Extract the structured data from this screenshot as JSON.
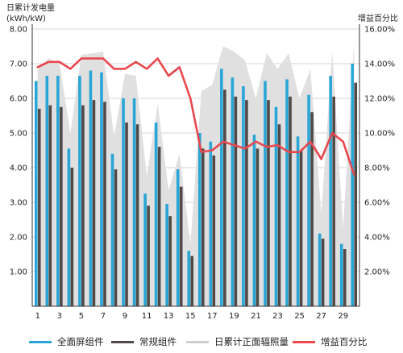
{
  "chart_data": {
    "type": "bar",
    "left_axis_title": [
      "日累计发电量",
      "(kWh/kW)"
    ],
    "right_axis_title": "增益百分比",
    "left_ylim": [
      0,
      8
    ],
    "left_ticks": [
      "1.00",
      "2.00",
      "3.00",
      "4.00",
      "5.00",
      "6.00",
      "7.00",
      "8.00"
    ],
    "right_ylim": [
      0,
      16
    ],
    "right_ticks": [
      "2.00%",
      "4.00%",
      "6.00%",
      "8.00%",
      "10.00%",
      "12.00%",
      "14.00%",
      "16.00%"
    ],
    "x_tick_labels": [
      "1",
      "3",
      "5",
      "7",
      "9",
      "11",
      "13",
      "15",
      "17",
      "19",
      "21",
      "23",
      "25",
      "27",
      "29"
    ],
    "days": [
      1,
      2,
      3,
      4,
      5,
      6,
      7,
      8,
      9,
      10,
      11,
      12,
      13,
      14,
      15,
      16,
      17,
      18,
      19,
      20,
      21,
      22,
      23,
      24,
      25,
      26,
      27,
      28,
      29,
      30
    ],
    "grid": true,
    "legend_position": "bottom",
    "series": [
      {
        "name": "全面屏组件",
        "color": "#2aa6d6",
        "axis": "left",
        "values": [
          6.5,
          6.65,
          6.65,
          4.55,
          6.65,
          6.8,
          6.75,
          4.4,
          6.0,
          6.0,
          3.25,
          5.3,
          2.95,
          3.95,
          1.6,
          5.0,
          4.75,
          6.85,
          6.6,
          6.35,
          4.95,
          6.5,
          5.75,
          6.55,
          4.9,
          6.1,
          2.1,
          6.65,
          1.8,
          7.0
        ]
      },
      {
        "name": "常规组件",
        "color": "#4f4a48",
        "axis": "left",
        "values": [
          5.7,
          5.8,
          5.75,
          4.0,
          5.8,
          5.95,
          5.9,
          3.95,
          5.3,
          5.25,
          2.9,
          4.6,
          2.6,
          3.45,
          1.45,
          4.55,
          4.35,
          6.25,
          6.05,
          5.95,
          4.55,
          5.95,
          5.25,
          6.05,
          4.5,
          5.6,
          1.95,
          6.05,
          1.65,
          6.45
        ]
      },
      {
        "name": "日累计正面辐照量",
        "color": "#d9d9d9",
        "axis": "left",
        "values": [
          6.85,
          7.15,
          7.0,
          5.0,
          7.25,
          7.3,
          7.35,
          4.9,
          6.7,
          6.65,
          3.75,
          5.85,
          3.35,
          4.4,
          1.8,
          6.2,
          6.4,
          7.5,
          7.35,
          7.1,
          6.0,
          7.3,
          6.85,
          7.3,
          6.0,
          6.85,
          2.65,
          7.35,
          2.25,
          7.6
        ]
      },
      {
        "name": "增益百分比",
        "color": "#e8474e",
        "axis": "right",
        "values": [
          13.8,
          14.1,
          14.1,
          13.7,
          14.3,
          14.3,
          14.3,
          13.7,
          13.7,
          14.1,
          13.7,
          14.3,
          13.3,
          13.8,
          12.0,
          8.9,
          9.0,
          9.5,
          9.3,
          9.1,
          9.5,
          9.2,
          9.3,
          8.9,
          8.9,
          9.5,
          8.5,
          10.0,
          9.5,
          7.6
        ]
      }
    ]
  }
}
